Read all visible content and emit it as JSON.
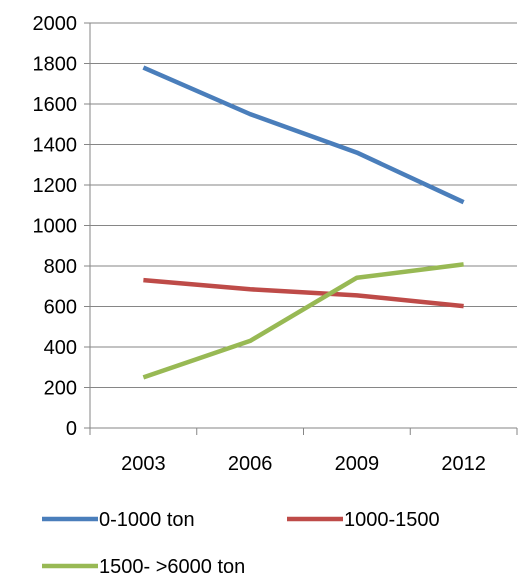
{
  "chart_data": {
    "type": "line",
    "title": "",
    "xlabel": "",
    "ylabel": "",
    "categories": [
      "2003",
      "2006",
      "2009",
      "2012"
    ],
    "ylim": [
      0,
      2000
    ],
    "yticks": [
      0,
      200,
      400,
      600,
      800,
      1000,
      1200,
      1400,
      1600,
      1800,
      2000
    ],
    "grid": true,
    "legend_position": "bottom",
    "series": [
      {
        "name": "0-1000 ton",
        "color": "#4a7ebb",
        "values": [
          1780,
          1550,
          1360,
          1115
        ]
      },
      {
        "name": "1000-1500",
        "color": "#be4b48",
        "values": [
          730,
          685,
          655,
          602
        ]
      },
      {
        "name": "1500- >6000 ton",
        "color": "#98b954",
        "values": [
          250,
          430,
          742,
          808
        ]
      }
    ]
  }
}
